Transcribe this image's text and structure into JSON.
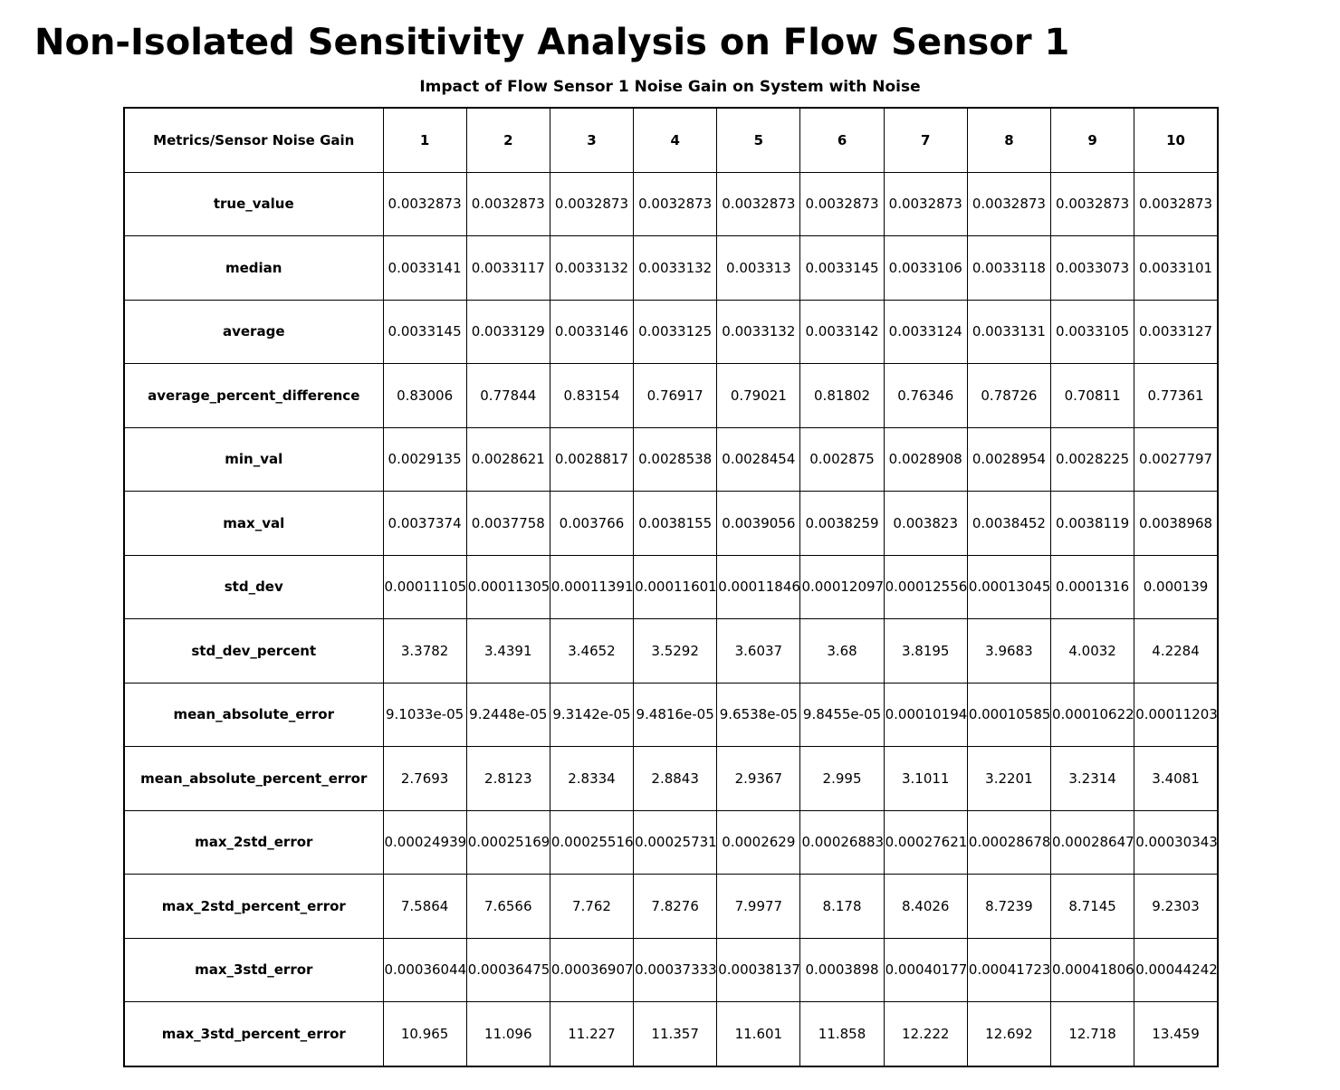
{
  "chart_data": {
    "type": "table",
    "title": "Non-Isolated Sensitivity Analysis on Flow Sensor 1",
    "subtitle": "Impact of Flow Sensor 1 Noise Gain on System with Noise",
    "corner_header": "Metrics/Sensor Noise Gain",
    "columns": [
      "1",
      "2",
      "3",
      "4",
      "5",
      "6",
      "7",
      "8",
      "9",
      "10"
    ],
    "rows": [
      {
        "metric": "true_value",
        "values": [
          "0.0032873",
          "0.0032873",
          "0.0032873",
          "0.0032873",
          "0.0032873",
          "0.0032873",
          "0.0032873",
          "0.0032873",
          "0.0032873",
          "0.0032873"
        ]
      },
      {
        "metric": "median",
        "values": [
          "0.0033141",
          "0.0033117",
          "0.0033132",
          "0.0033132",
          "0.003313",
          "0.0033145",
          "0.0033106",
          "0.0033118",
          "0.0033073",
          "0.0033101"
        ]
      },
      {
        "metric": "average",
        "values": [
          "0.0033145",
          "0.0033129",
          "0.0033146",
          "0.0033125",
          "0.0033132",
          "0.0033142",
          "0.0033124",
          "0.0033131",
          "0.0033105",
          "0.0033127"
        ]
      },
      {
        "metric": "average_percent_difference",
        "values": [
          "0.83006",
          "0.77844",
          "0.83154",
          "0.76917",
          "0.79021",
          "0.81802",
          "0.76346",
          "0.78726",
          "0.70811",
          "0.77361"
        ]
      },
      {
        "metric": "min_val",
        "values": [
          "0.0029135",
          "0.0028621",
          "0.0028817",
          "0.0028538",
          "0.0028454",
          "0.002875",
          "0.0028908",
          "0.0028954",
          "0.0028225",
          "0.0027797"
        ]
      },
      {
        "metric": "max_val",
        "values": [
          "0.0037374",
          "0.0037758",
          "0.003766",
          "0.0038155",
          "0.0039056",
          "0.0038259",
          "0.003823",
          "0.0038452",
          "0.0038119",
          "0.0038968"
        ]
      },
      {
        "metric": "std_dev",
        "values": [
          "0.00011105",
          "0.00011305",
          "0.00011391",
          "0.00011601",
          "0.00011846",
          "0.00012097",
          "0.00012556",
          "0.00013045",
          "0.0001316",
          "0.000139"
        ]
      },
      {
        "metric": "std_dev_percent",
        "values": [
          "3.3782",
          "3.4391",
          "3.4652",
          "3.5292",
          "3.6037",
          "3.68",
          "3.8195",
          "3.9683",
          "4.0032",
          "4.2284"
        ]
      },
      {
        "metric": "mean_absolute_error",
        "values": [
          "9.1033e-05",
          "9.2448e-05",
          "9.3142e-05",
          "9.4816e-05",
          "9.6538e-05",
          "9.8455e-05",
          "0.00010194",
          "0.00010585",
          "0.00010622",
          "0.00011203"
        ]
      },
      {
        "metric": "mean_absolute_percent_error",
        "values": [
          "2.7693",
          "2.8123",
          "2.8334",
          "2.8843",
          "2.9367",
          "2.995",
          "3.1011",
          "3.2201",
          "3.2314",
          "3.4081"
        ]
      },
      {
        "metric": "max_2std_error",
        "values": [
          "0.00024939",
          "0.00025169",
          "0.00025516",
          "0.00025731",
          "0.0002629",
          "0.00026883",
          "0.00027621",
          "0.00028678",
          "0.00028647",
          "0.00030343"
        ]
      },
      {
        "metric": "max_2std_percent_error",
        "values": [
          "7.5864",
          "7.6566",
          "7.762",
          "7.8276",
          "7.9977",
          "8.178",
          "8.4026",
          "8.7239",
          "8.7145",
          "9.2303"
        ]
      },
      {
        "metric": "max_3std_error",
        "values": [
          "0.00036044",
          "0.00036475",
          "0.00036907",
          "0.00037333",
          "0.00038137",
          "0.0003898",
          "0.00040177",
          "0.00041723",
          "0.00041806",
          "0.00044242"
        ]
      },
      {
        "metric": "max_3std_percent_error",
        "values": [
          "10.965",
          "11.096",
          "11.227",
          "11.357",
          "11.601",
          "11.858",
          "12.222",
          "12.692",
          "12.718",
          "13.459"
        ]
      }
    ],
    "layout": {
      "grid": "all-cell-borders",
      "header_style": "bold",
      "row_label_style": "bold",
      "border_color": "#000000",
      "background_color": "#ffffff",
      "text_color": "#000000"
    }
  }
}
